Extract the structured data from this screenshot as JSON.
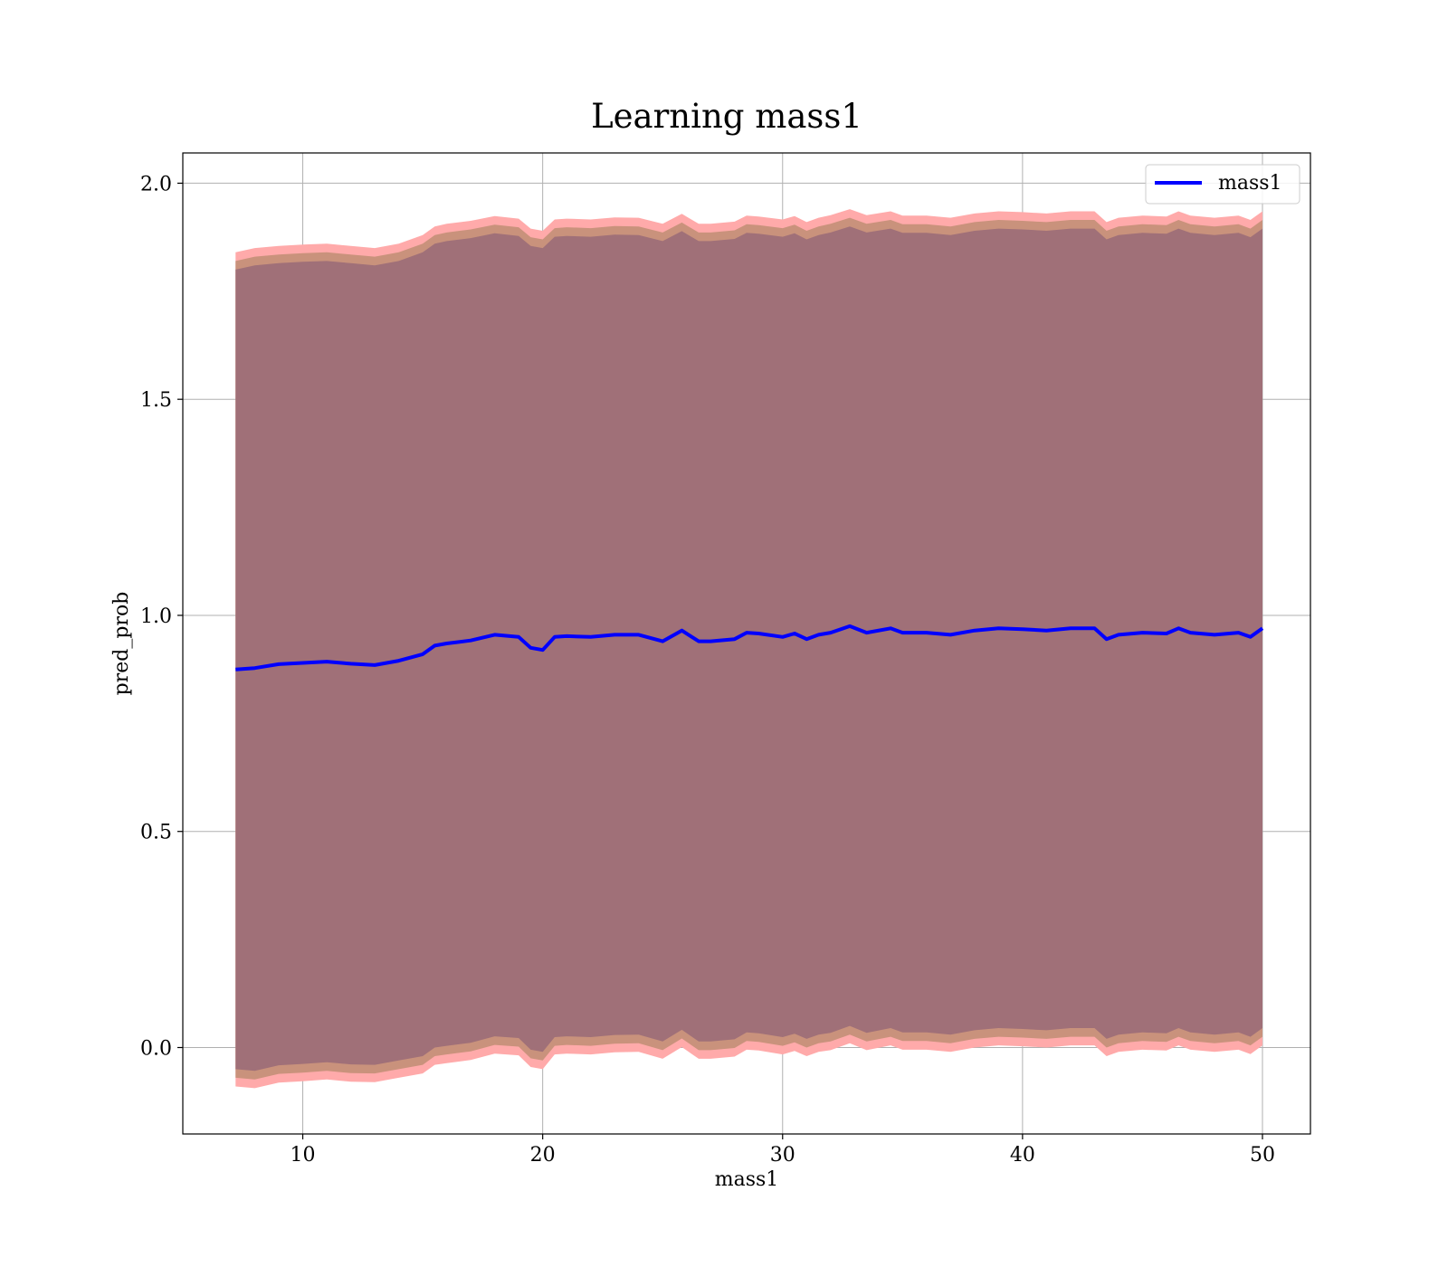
{
  "chart_data": {
    "type": "line",
    "title": "Learning mass1",
    "xlabel": "mass1",
    "ylabel": "pred_prob",
    "xlim": [
      5.0,
      52.0
    ],
    "ylim": [
      -0.2,
      2.07
    ],
    "xticks": [
      10,
      20,
      30,
      40,
      50
    ],
    "xtick_labels": [
      "10",
      "20",
      "30",
      "40",
      "50"
    ],
    "yticks": [
      0.0,
      0.5,
      1.0,
      1.5,
      2.0
    ],
    "ytick_labels": [
      "0.0",
      "0.5",
      "1.0",
      "1.5",
      "2.0"
    ],
    "grid": true,
    "legend": {
      "position": "top-right",
      "entries": [
        "mass1"
      ]
    },
    "colors": {
      "line": "#0000ff",
      "inner_band": "#a07078",
      "middle_band": "#c9927c",
      "outer_band": "#ffaaaa",
      "grid": "#b0b0b0"
    },
    "series": [
      {
        "name": "mass1",
        "x": [
          7.2,
          8.0,
          9.0,
          10.0,
          11.0,
          12.0,
          13.0,
          14.0,
          15.0,
          15.5,
          16.0,
          17.0,
          18.0,
          19.0,
          19.5,
          20.0,
          20.5,
          21.0,
          22.0,
          23.0,
          24.0,
          25.0,
          25.8,
          26.5,
          27.0,
          28.0,
          28.5,
          29.0,
          30.0,
          30.5,
          31.0,
          31.5,
          32.0,
          32.8,
          33.5,
          34.5,
          35.0,
          36.0,
          37.0,
          38.0,
          39.0,
          40.0,
          41.0,
          42.0,
          43.0,
          43.5,
          44.0,
          45.0,
          46.0,
          46.5,
          47.0,
          48.0,
          49.0,
          49.5,
          50.0
        ],
        "y": [
          0.875,
          0.878,
          0.887,
          0.89,
          0.893,
          0.888,
          0.885,
          0.895,
          0.91,
          0.93,
          0.935,
          0.942,
          0.955,
          0.95,
          0.925,
          0.92,
          0.95,
          0.952,
          0.95,
          0.955,
          0.955,
          0.94,
          0.965,
          0.94,
          0.94,
          0.945,
          0.96,
          0.958,
          0.95,
          0.958,
          0.945,
          0.955,
          0.96,
          0.975,
          0.96,
          0.97,
          0.96,
          0.96,
          0.955,
          0.965,
          0.97,
          0.968,
          0.965,
          0.97,
          0.97,
          0.945,
          0.955,
          0.96,
          0.958,
          0.97,
          0.96,
          0.955,
          0.96,
          0.95,
          0.97
        ],
        "inner_upper": [
          1.8,
          1.81,
          1.815,
          1.818,
          1.82,
          1.815,
          1.81,
          1.82,
          1.84,
          1.86,
          1.866,
          1.873,
          1.884,
          1.878,
          1.855,
          1.85,
          1.876,
          1.878,
          1.876,
          1.881,
          1.88,
          1.866,
          1.889,
          1.866,
          1.866,
          1.871,
          1.885,
          1.883,
          1.876,
          1.884,
          1.87,
          1.88,
          1.886,
          1.9,
          1.886,
          1.895,
          1.885,
          1.885,
          1.88,
          1.89,
          1.895,
          1.893,
          1.89,
          1.895,
          1.895,
          1.87,
          1.88,
          1.885,
          1.883,
          1.895,
          1.885,
          1.88,
          1.885,
          1.875,
          1.895
        ],
        "inner_lower": [
          -0.05,
          -0.054,
          -0.041,
          -0.038,
          -0.034,
          -0.039,
          -0.04,
          -0.03,
          -0.02,
          0.0,
          0.004,
          0.011,
          0.026,
          0.022,
          -0.005,
          -0.01,
          0.024,
          0.026,
          0.024,
          0.029,
          0.03,
          0.014,
          0.041,
          0.014,
          0.014,
          0.019,
          0.035,
          0.033,
          0.024,
          0.032,
          0.02,
          0.03,
          0.034,
          0.05,
          0.034,
          0.045,
          0.035,
          0.035,
          0.03,
          0.04,
          0.045,
          0.043,
          0.04,
          0.045,
          0.045,
          0.02,
          0.03,
          0.035,
          0.033,
          0.045,
          0.035,
          0.03,
          0.035,
          0.025,
          0.045
        ],
        "outer_upper": [
          1.84,
          1.85,
          1.855,
          1.858,
          1.86,
          1.855,
          1.85,
          1.86,
          1.88,
          1.9,
          1.906,
          1.913,
          1.924,
          1.918,
          1.895,
          1.89,
          1.916,
          1.918,
          1.916,
          1.921,
          1.92,
          1.906,
          1.929,
          1.906,
          1.906,
          1.911,
          1.925,
          1.923,
          1.916,
          1.924,
          1.91,
          1.92,
          1.926,
          1.94,
          1.926,
          1.935,
          1.925,
          1.925,
          1.92,
          1.93,
          1.935,
          1.933,
          1.93,
          1.935,
          1.935,
          1.91,
          1.92,
          1.925,
          1.923,
          1.935,
          1.925,
          1.92,
          1.925,
          1.915,
          1.935
        ],
        "outer_lower": [
          -0.09,
          -0.094,
          -0.081,
          -0.078,
          -0.074,
          -0.079,
          -0.08,
          -0.07,
          -0.06,
          -0.04,
          -0.036,
          -0.029,
          -0.014,
          -0.018,
          -0.045,
          -0.05,
          -0.016,
          -0.014,
          -0.016,
          -0.011,
          -0.01,
          -0.026,
          0.001,
          -0.026,
          -0.026,
          -0.021,
          -0.005,
          -0.007,
          -0.016,
          -0.008,
          -0.02,
          -0.01,
          -0.006,
          0.01,
          -0.006,
          0.005,
          -0.005,
          -0.005,
          -0.01,
          0.0,
          0.005,
          0.003,
          0.0,
          0.005,
          0.005,
          -0.02,
          -0.01,
          -0.005,
          -0.007,
          0.005,
          -0.005,
          -0.01,
          -0.005,
          -0.015,
          0.005
        ]
      }
    ]
  }
}
